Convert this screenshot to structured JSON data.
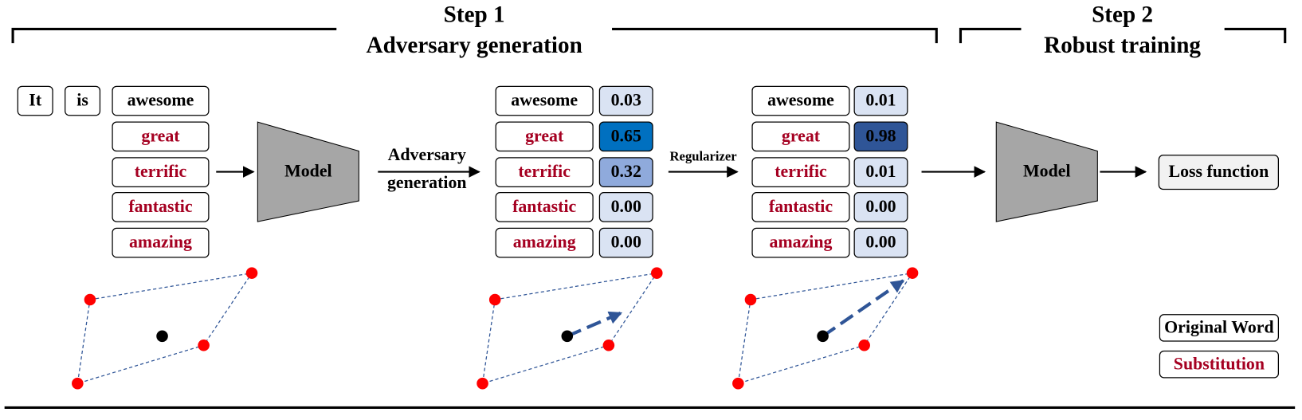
{
  "step1": {
    "label": "Step 1",
    "title": "Adversary generation"
  },
  "step2": {
    "label": "Step 2",
    "title": "Robust training"
  },
  "input": {
    "context": [
      "It",
      "is"
    ],
    "words": [
      "awesome",
      "great",
      "terrific",
      "fantastic",
      "amazing"
    ]
  },
  "models": [
    "Model",
    "Model"
  ],
  "arrows": {
    "adversary": [
      "Adversary",
      "generation"
    ],
    "regularizer": "Regularizer"
  },
  "panels": [
    {
      "words": [
        "awesome",
        "great",
        "terrific",
        "fantastic",
        "amazing"
      ],
      "weights": [
        "0.03",
        "0.65",
        "0.32",
        "0.00",
        "0.00"
      ]
    },
    {
      "words": [
        "awesome",
        "great",
        "terrific",
        "fantastic",
        "amazing"
      ],
      "weights": [
        "0.01",
        "0.98",
        "0.01",
        "0.00",
        "0.00"
      ]
    }
  ],
  "loss": "Loss function",
  "legend": {
    "original": "Original Word",
    "substitution": "Substitution"
  }
}
